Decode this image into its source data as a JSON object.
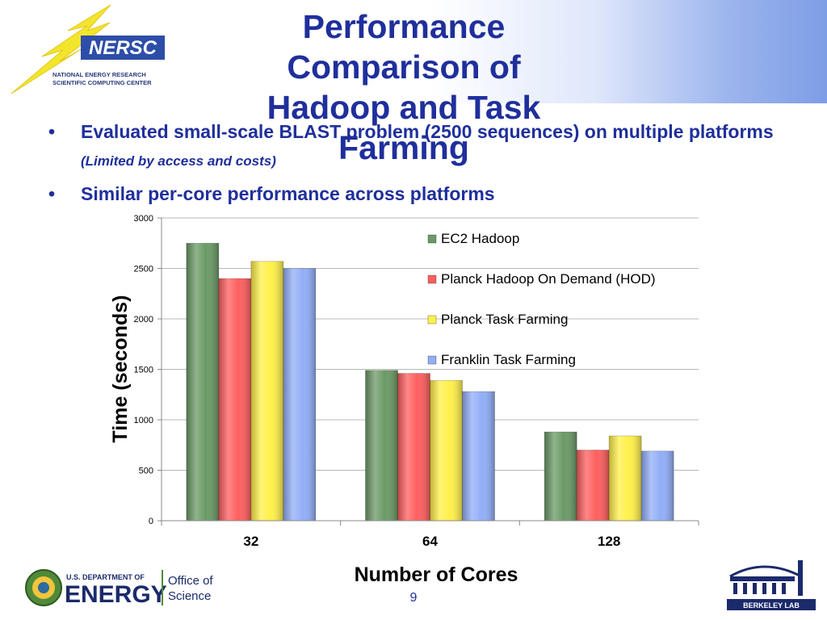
{
  "title_lines": [
    "Performance Comparison of",
    "Hadoop and Task Farming"
  ],
  "nersc_logo": {
    "mark": "NERSC",
    "line1": "NATIONAL ENERGY RESEARCH",
    "line2": "SCIENTIFIC COMPUTING CENTER"
  },
  "bullets": [
    {
      "text": "Evaluated small-scale BLAST problem (2500 sequences) on multiple platforms",
      "note": "(Limited by access and costs)"
    },
    {
      "text": "Similar per-core performance across platforms",
      "note": ""
    }
  ],
  "chart_data": {
    "type": "bar",
    "xlabel": "Number of Cores",
    "ylabel": "Time (seconds)",
    "ylim": [
      0,
      3000
    ],
    "yticks": [
      0,
      500,
      1000,
      1500,
      2000,
      2500,
      3000
    ],
    "categories": [
      "32",
      "64",
      "128"
    ],
    "series": [
      {
        "name": "EC2 Hadoop",
        "color": "#6b9a66",
        "values": [
          2750,
          1490,
          880
        ]
      },
      {
        "name": "Planck Hadoop On Demand (HOD)",
        "color": "#ff5f5f",
        "values": [
          2400,
          1460,
          700
        ]
      },
      {
        "name": "Planck Task Farming",
        "color": "#fff04a",
        "values": [
          2570,
          1390,
          840
        ]
      },
      {
        "name": "Franklin Task Farming",
        "color": "#92aef8",
        "values": [
          2500,
          1280,
          690
        ]
      }
    ],
    "grid": true,
    "legend": "right"
  },
  "footer": {
    "doe_line1": "U.S. DEPARTMENT OF",
    "doe_line2": "ENERGY",
    "office_line1": "Office of",
    "office_line2": "Science",
    "lab_name": "BERKELEY LAB",
    "page_number": "9"
  },
  "colors": {
    "title": "#1f2f9c",
    "logo_blue": "#2d4ea8",
    "logo_yellow": "#f3e42c"
  }
}
